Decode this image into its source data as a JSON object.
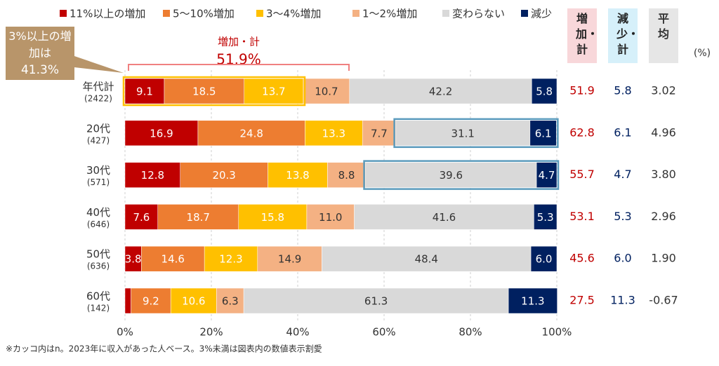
{
  "chart_data": {
    "type": "stacked_barh",
    "categories": [
      "年代計",
      "20代",
      "30代",
      "40代",
      "50代",
      "60代"
    ],
    "sample_sizes": [
      "(2422)",
      "(427)",
      "(571)",
      "(646)",
      "(636)",
      "(142)"
    ],
    "series": [
      {
        "name": "11%以上の増加",
        "color": "#c00000",
        "values": [
          9.1,
          16.9,
          12.8,
          7.6,
          3.8,
          1.4
        ],
        "value_labels": [
          "9.1",
          "16.9",
          "12.8",
          "7.6",
          "3.8",
          null
        ]
      },
      {
        "name": "5～10%増加",
        "color": "#ed7d31",
        "values": [
          18.5,
          24.8,
          20.3,
          18.7,
          14.6,
          9.2
        ],
        "value_labels": [
          "18.5",
          "24.8",
          "20.3",
          "18.7",
          "14.6",
          "9.2"
        ]
      },
      {
        "name": "3～4%増加",
        "color": "#ffc000",
        "values": [
          13.7,
          13.3,
          13.8,
          15.8,
          12.3,
          10.6
        ],
        "value_labels": [
          "13.7",
          "13.3",
          "13.8",
          "15.8",
          "12.3",
          "10.6"
        ]
      },
      {
        "name": "1～2%増加",
        "color": "#f4b183",
        "values": [
          10.7,
          7.7,
          8.8,
          11.0,
          14.9,
          6.3
        ],
        "value_labels": [
          "10.7",
          "7.7",
          "8.8",
          "11.0",
          "14.9",
          "6.3"
        ]
      },
      {
        "name": "変わらない",
        "color": "#d9d9d9",
        "values": [
          42.2,
          31.1,
          39.6,
          41.6,
          48.4,
          61.3
        ],
        "value_labels": [
          "42.2",
          "31.1",
          "39.6",
          "41.6",
          "48.4",
          "61.3"
        ]
      },
      {
        "name": "減少",
        "color": "#002060",
        "values": [
          5.8,
          6.1,
          4.7,
          5.3,
          6.0,
          11.3
        ],
        "value_labels": [
          "5.8",
          "6.1",
          "4.7",
          "5.3",
          "6.0",
          "11.3"
        ]
      }
    ],
    "xlim": [
      0,
      100
    ],
    "xticks": [
      {
        "value": 0,
        "label": "0%"
      },
      {
        "value": 20,
        "label": "20%"
      },
      {
        "value": 40,
        "label": "40%"
      },
      {
        "value": 60,
        "label": "60%"
      },
      {
        "value": 80,
        "label": "80%"
      },
      {
        "value": 100,
        "label": "100%"
      }
    ],
    "grid": true,
    "side_table": {
      "unit": "(%)",
      "columns": [
        {
          "header": "増加・計",
          "color": "#c00000",
          "background": "#f8d7da",
          "values": [
            "51.9",
            "62.8",
            "55.7",
            "53.1",
            "45.6",
            "27.5"
          ]
        },
        {
          "header": "減少・計",
          "color": "#002060",
          "background": "#d6f0fa",
          "values": [
            "5.8",
            "6.1",
            "4.7",
            "5.3",
            "6.0",
            "11.3"
          ]
        },
        {
          "header": "平均",
          "color": "#333333",
          "background": "#e6e6e6",
          "values": [
            "3.02",
            "4.96",
            "3.80",
            "2.96",
            "1.90",
            "-0.67"
          ]
        }
      ]
    },
    "annotations": {
      "bracket_title": "増加・計",
      "bracket_value": "51.9%",
      "callout_text": "3%以上の増加は",
      "callout_value": "41.3%"
    },
    "footnote": "※カッコ内はn。2023年に収入があった人ベース。3%未満は図表内の数値表示割愛"
  }
}
